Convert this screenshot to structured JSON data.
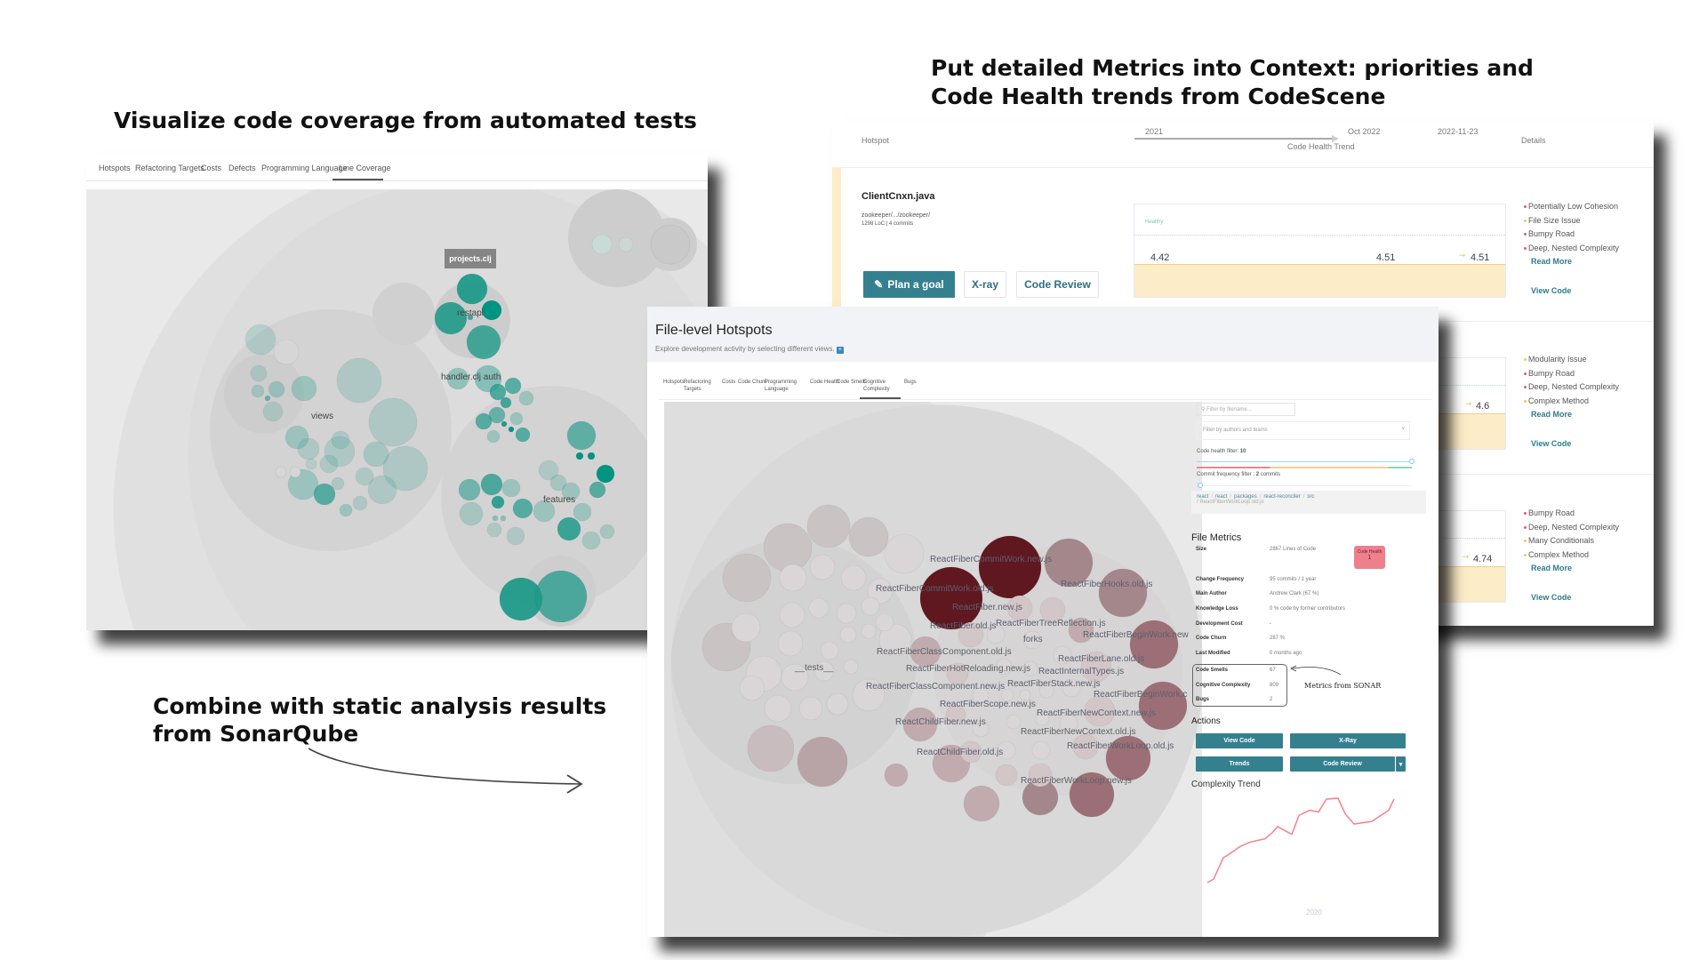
{
  "headings": {
    "left": "Visualize code coverage from automated tests",
    "right_line1": "Put detailed Metrics into Context: priorities and",
    "right_line2": "Code Health trends from CodeScene",
    "bottom_line1": "Combine with static analysis results",
    "bottom_line2": "from SonarQube"
  },
  "coverage_panel": {
    "tabs": [
      "Hotspots",
      "Refactoring Targets",
      "Costs",
      "Defects",
      "Programming Language",
      "Line Coverage"
    ],
    "active_tab": "Line Coverage",
    "tooltip": "projects.clj",
    "labels": [
      "restapi",
      "handler.clj auth",
      "views",
      "features"
    ],
    "accent_color": "#1f9a8a"
  },
  "trend_panel": {
    "header": {
      "hotspot": "Hotspot",
      "timeline": [
        "2021",
        "Oct 2022",
        "2022-11-23"
      ],
      "trend_label": "Code Health Trend",
      "details": "Details"
    },
    "rows": [
      {
        "name": "ClientCnxn.java",
        "path": "zookeeper/.../zookeeper/",
        "stats": "1298 LoC | 4 commits",
        "buttons": {
          "plan": "Plan a goal",
          "xray": "X-ray",
          "review": "Code Review"
        },
        "chart_label": "Healthy",
        "values": [
          "4.42",
          "4.51",
          "4.51"
        ],
        "issues": [
          {
            "text": "Potentially Low Cohesion",
            "severity": "red"
          },
          {
            "text": "File Size Issue",
            "severity": "yellow"
          },
          {
            "text": "Bumpy Road",
            "severity": "red"
          },
          {
            "text": "Deep, Nested Complexity",
            "severity": "red"
          }
        ],
        "read_more": "Read More",
        "view_code": "View Code"
      },
      {
        "values": [
          "4.6"
        ],
        "issues": [
          {
            "text": "Modularity Issue",
            "severity": "yellow"
          },
          {
            "text": "Bumpy Road",
            "severity": "red"
          },
          {
            "text": "Deep, Nested Complexity",
            "severity": "red"
          },
          {
            "text": "Complex Method",
            "severity": "yellow"
          }
        ],
        "read_more": "Read More",
        "view_code": "View Code"
      },
      {
        "values": [
          "4.74"
        ],
        "issues": [
          {
            "text": "Bumpy Road",
            "severity": "red"
          },
          {
            "text": "Deep, Nested Complexity",
            "severity": "red"
          },
          {
            "text": "Many Conditionals",
            "severity": "yellow"
          },
          {
            "text": "Complex Method",
            "severity": "yellow"
          }
        ],
        "read_more": "Read More",
        "view_code": "View Code"
      }
    ],
    "colors": {
      "red": "#e05d6f",
      "yellow": "#f0c96b",
      "fill": "#fdecc8"
    }
  },
  "hotspots_panel": {
    "title": "File-level Hotspots",
    "subtitle": "Explore development activity by selecting different views.",
    "tabs": [
      "Hotspots",
      "Refactoring Targets",
      "Costs",
      "Code Churn",
      "Programming Language",
      "Code Health",
      "Code Smells",
      "Cognitive Complexity",
      "Bugs"
    ],
    "active_tab": "Cognitive Complexity",
    "bubble_labels": [
      "ReactFiberCommitWork.new.js",
      "ReactFiberCommitWork.old.js",
      "ReactFiber.new.js",
      "ReactFiber.old.js",
      "ReactFiberTreeReflection.js",
      "forks",
      "ReactFiberHooks.old.js",
      "ReactFiberBeginWork.new",
      "ReactFiberClassComponent.old.js",
      "ReactFiberLane.old.js",
      "ReactFiberHotReloading.new.js",
      "ReactInternalTypes.js",
      "ReactFiberClassComponent.new.js",
      "ReactFiberStack.new.js",
      "ReactFiberBeginWork.c",
      "ReactFiberScope.new.js",
      "ReactFiberNewContext.new.js",
      "ReactChildFiber.new.js",
      "ReactFiberNewContext.old.js",
      "ReactFiberWorkLoop.old.js",
      "ReactChildFiber.old.js",
      "ReactFiberWorkLoop.new.js",
      "__tests__"
    ],
    "sidebar": {
      "filename_placeholder": "Filter by filename...",
      "authors_placeholder": "Filter by authors and teams",
      "code_health_filter_label": "Code health filter:",
      "code_health_filter_value": "10",
      "commit_filter_label": "Commit frequency filter :",
      "commit_filter_value": "2",
      "commit_filter_unit": "commits",
      "breadcrumb": [
        "react",
        "react",
        "packages",
        "react-reconciler",
        "src"
      ],
      "breadcrumb_file": "ReactFiberWorkLoop.old.js",
      "file_metrics_title": "File Metrics",
      "metrics": [
        {
          "label": "Size",
          "value": "2867 Lines of Code"
        },
        {
          "label": "Change Frequency",
          "value": "95 commits / 1 year"
        },
        {
          "label": "Main Author",
          "value": "Andrew Clark (67 %)"
        },
        {
          "label": "Knowledge Loss",
          "value": "0 % code by former contributors"
        },
        {
          "label": "Development Cost",
          "value": "-"
        },
        {
          "label": "Code Churn",
          "value": "287 %"
        },
        {
          "label": "Last Modified",
          "value": "0 months ago"
        }
      ],
      "sonar_metrics": [
        {
          "label": "Code Smells",
          "value": "67"
        },
        {
          "label": "Cognitive Complexity",
          "value": "809"
        },
        {
          "label": "Bugs",
          "value": "2"
        }
      ],
      "code_health_badge": {
        "label": "Code Health",
        "value": "1",
        "color": "#ee7f8c"
      },
      "sonar_annotation": "Metrics from SONAR",
      "actions_title": "Actions",
      "actions": {
        "view_code": "View Code",
        "xray": "X-Ray",
        "trends": "Trends",
        "code_review": "Code Review"
      },
      "complexity_trend_title": "Complexity Trend",
      "complexity_trend": {
        "type": "line",
        "x_tick": "2020",
        "values": [
          1,
          5,
          30,
          33,
          43,
          48,
          52,
          59,
          66,
          57,
          79,
          85,
          83,
          98,
          99,
          81,
          69,
          72,
          85,
          98
        ],
        "color": "#f4808f"
      }
    }
  }
}
